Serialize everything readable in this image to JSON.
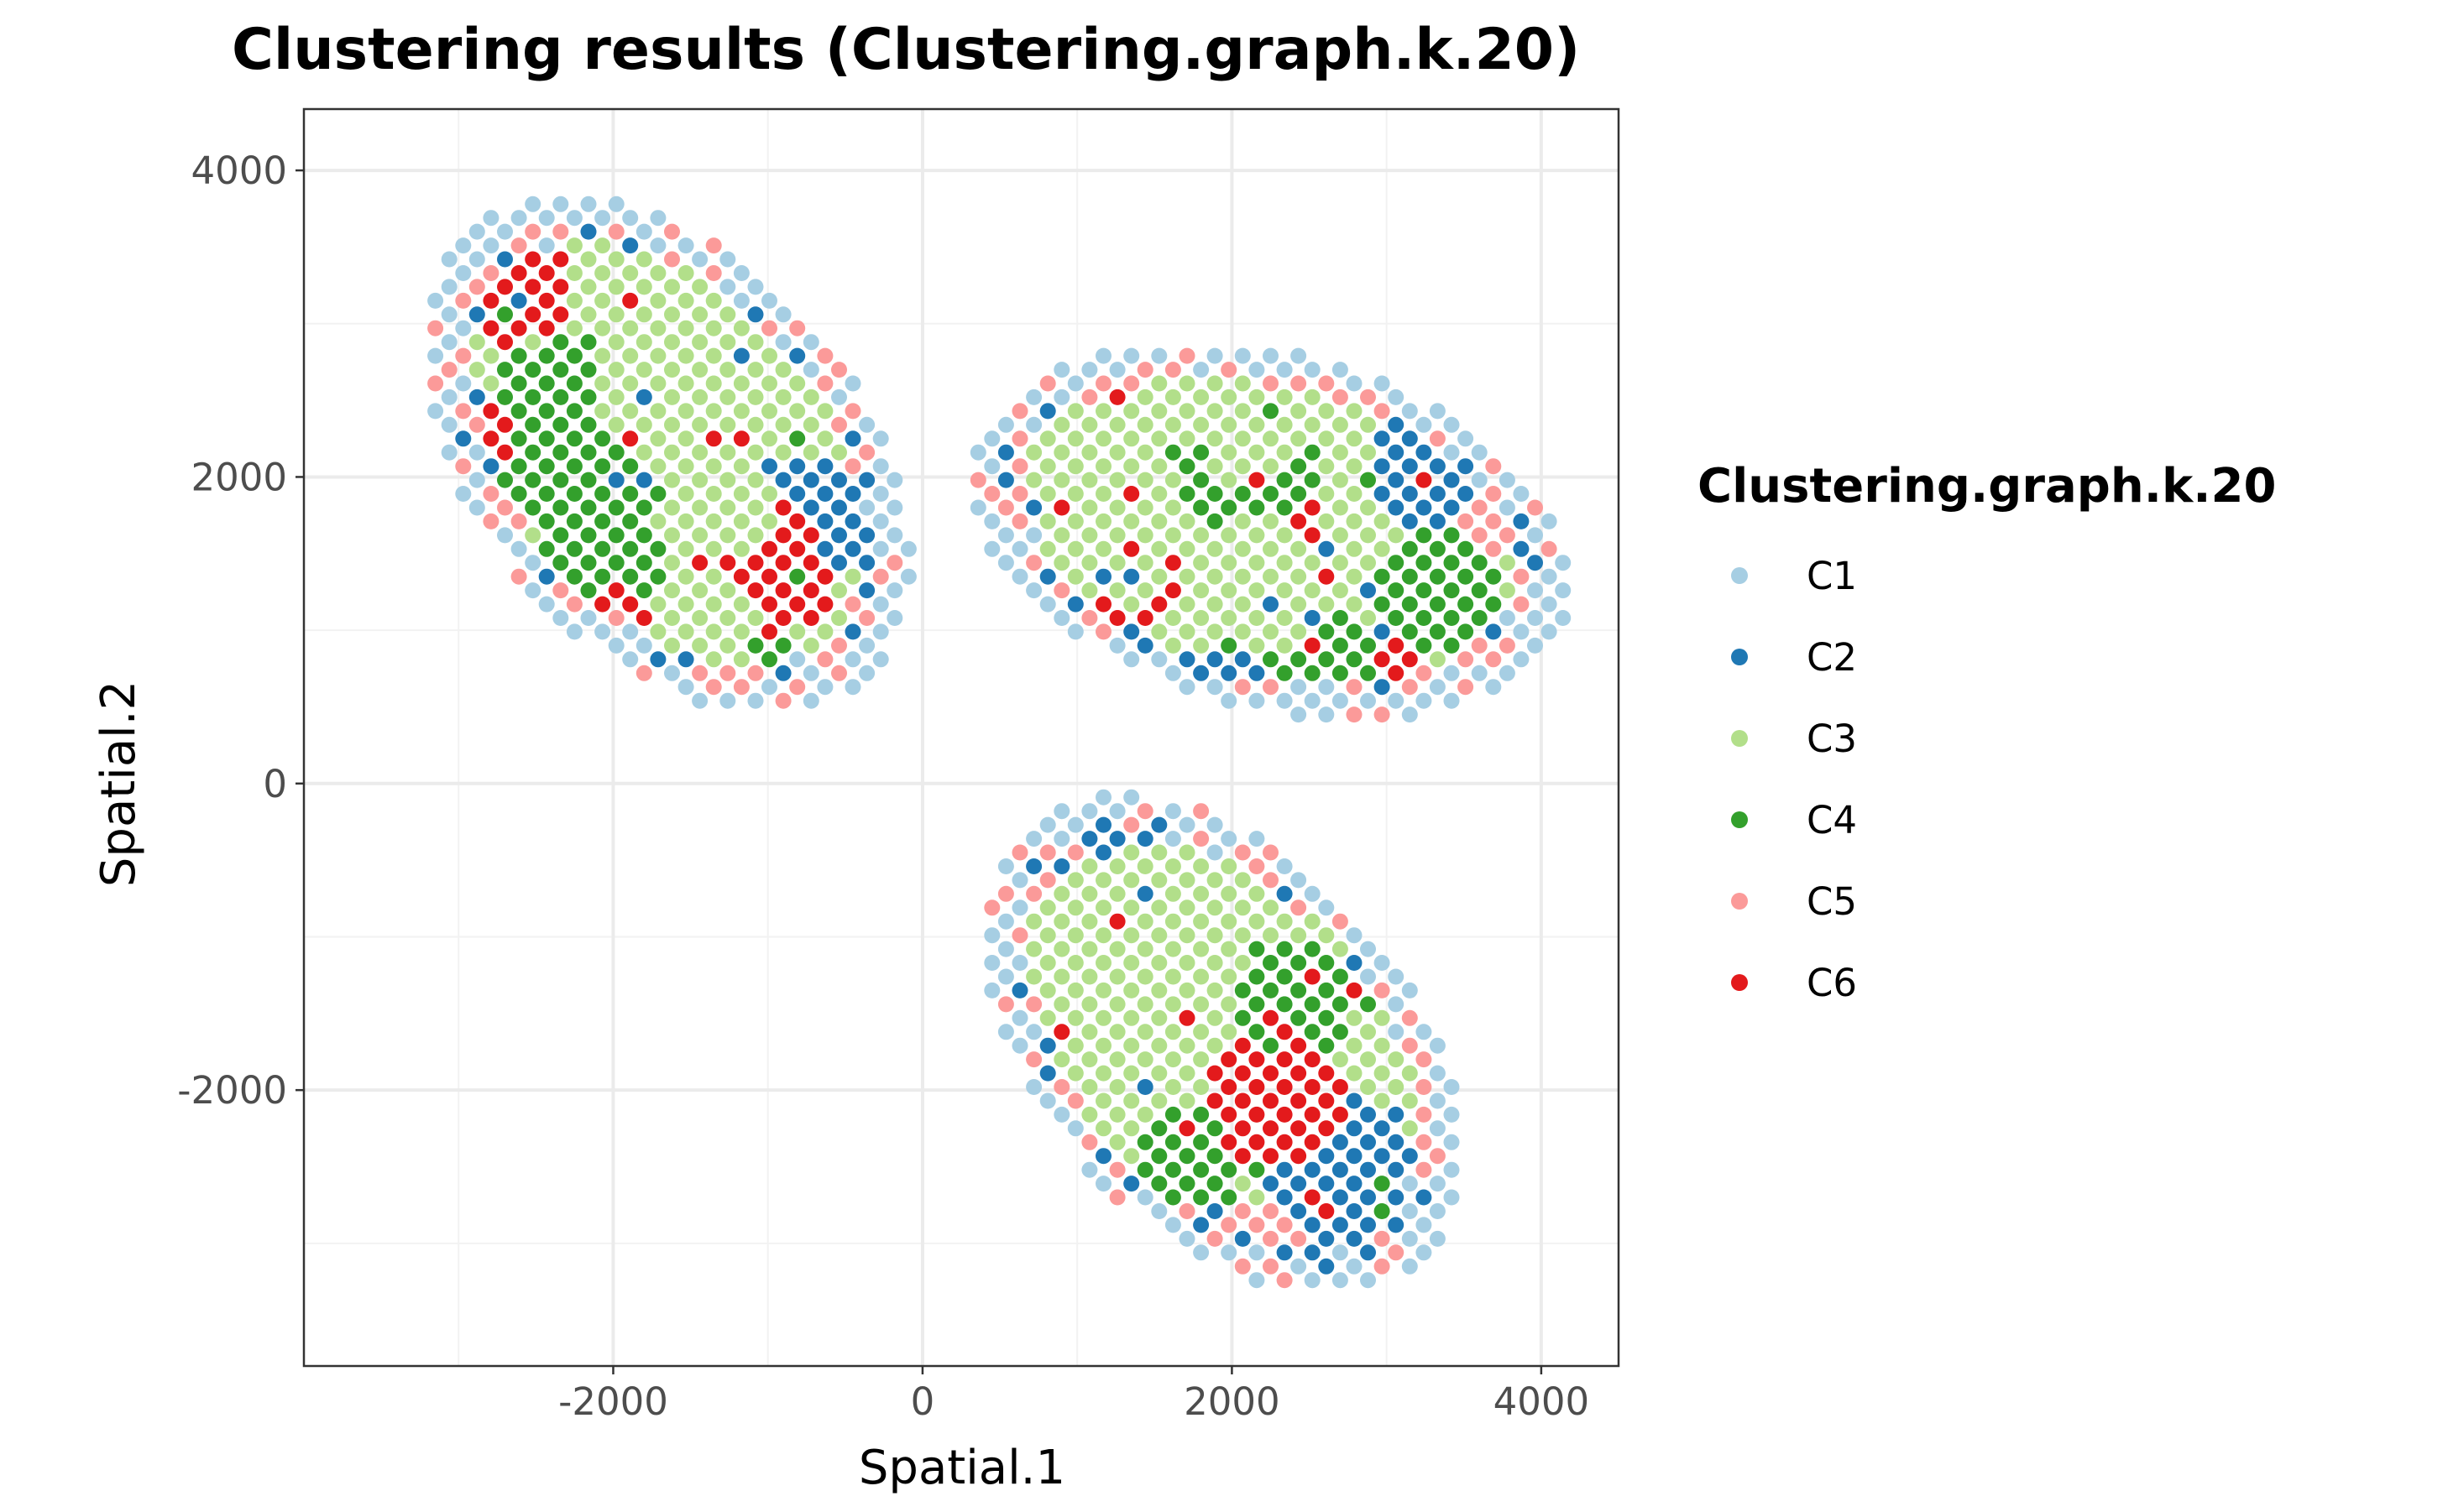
{
  "chart_data": {
    "type": "scatter",
    "title": "Clustering results (Clustering.graph.k.20)",
    "xlabel": "Spatial.1",
    "ylabel": "Spatial.2",
    "xlim": [
      -4000,
      4500
    ],
    "ylim": [
      -3800,
      4400
    ],
    "x_ticks": [
      -2000,
      0,
      2000,
      4000
    ],
    "x_tick_labels": [
      "-2000",
      "0",
      "2000",
      "4000"
    ],
    "y_ticks": [
      -2000,
      0,
      2000,
      4000
    ],
    "y_tick_labels": [
      "-2000",
      "0",
      "2000",
      "4000"
    ],
    "grid": true,
    "legend": {
      "title": "Clustering.graph.k.20",
      "position": "right",
      "entries": [
        {
          "label": "C1",
          "color": "#a6cee3"
        },
        {
          "label": "C2",
          "color": "#1f78b4"
        },
        {
          "label": "C3",
          "color": "#b2df8a"
        },
        {
          "label": "C4",
          "color": "#33a02c"
        },
        {
          "label": "C5",
          "color": "#fb9a99"
        },
        {
          "label": "C6",
          "color": "#e31a1c"
        }
      ]
    },
    "point_spacing": 180,
    "tissue_sections": [
      {
        "name": "upper-left",
        "center": [
          -1650,
          2150
        ],
        "radii": [
          1250,
          1950
        ],
        "rotation_deg": 40,
        "zones": [
          {
            "cluster": "C3",
            "center": [
              -1550,
              2600
            ],
            "radius": 600
          },
          {
            "cluster": "C3",
            "center": [
              -1250,
              1800
            ],
            "radius": 350
          },
          {
            "cluster": "C3",
            "center": [
              -1400,
              1050
            ],
            "radius": 350
          },
          {
            "cluster": "C6",
            "center": [
              -2700,
              3300
            ],
            "radius": 450
          },
          {
            "cluster": "C6",
            "center": [
              -3050,
              2300
            ],
            "radius": 400
          },
          {
            "cluster": "C6",
            "center": [
              -1000,
              1400
            ],
            "radius": 450
          },
          {
            "cluster": "C6",
            "center": [
              -750,
              500
            ],
            "radius": 350
          },
          {
            "cluster": "C6",
            "center": [
              -2000,
              1000
            ],
            "radius": 300
          },
          {
            "cluster": "C4",
            "center": [
              -2200,
              2300
            ],
            "radius": 650
          },
          {
            "cluster": "C4",
            "center": [
              -2100,
              1300
            ],
            "radius": 500
          },
          {
            "cluster": "C4",
            "center": [
              -1000,
              600
            ],
            "radius": 350
          },
          {
            "cluster": "C2",
            "center": [
              -1600,
              450
            ],
            "radius": 500
          },
          {
            "cluster": "C2",
            "center": [
              -700,
              1700
            ],
            "radius": 400
          },
          {
            "cluster": "C2",
            "center": [
              -2900,
              1600
            ],
            "radius": 300
          }
        ]
      },
      {
        "name": "upper-right",
        "center": [
          2250,
          1650
        ],
        "radii": [
          2000,
          1150
        ],
        "rotation_deg": -15,
        "zones": [
          {
            "cluster": "C3",
            "center": [
              900,
              1800
            ],
            "radius": 800
          },
          {
            "cluster": "C3",
            "center": [
              2200,
              1300
            ],
            "radius": 450
          },
          {
            "cluster": "C3",
            "center": [
              2100,
              2400
            ],
            "radius": 450
          },
          {
            "cluster": "C4",
            "center": [
              2100,
              2150
            ],
            "radius": 500
          },
          {
            "cluster": "C4",
            "center": [
              3350,
              1250
            ],
            "radius": 400
          },
          {
            "cluster": "C4",
            "center": [
              2550,
              800
            ],
            "radius": 350
          },
          {
            "cluster": "C6",
            "center": [
              2200,
              1750
            ],
            "radius": 400
          },
          {
            "cluster": "C6",
            "center": [
              1400,
              1300
            ],
            "radius": 300
          },
          {
            "cluster": "C6",
            "center": [
              3000,
              650
            ],
            "radius": 300
          },
          {
            "cluster": "C6",
            "center": [
              1300,
              2350
            ],
            "radius": 200
          },
          {
            "cluster": "C2",
            "center": [
              2200,
              450
            ],
            "radius": 550
          },
          {
            "cluster": "C2",
            "center": [
              3200,
              2000
            ],
            "radius": 350
          },
          {
            "cluster": "C5",
            "center": [
              3700,
              1800
            ],
            "radius": 350
          }
        ]
      },
      {
        "name": "lower",
        "center": [
          1950,
          -1700
        ],
        "radii": [
          1900,
          1200
        ],
        "rotation_deg": -48,
        "zones": [
          {
            "cluster": "C3",
            "center": [
              1350,
              -1350
            ],
            "radius": 650
          },
          {
            "cluster": "C3",
            "center": [
              900,
              -700
            ],
            "radius": 350
          },
          {
            "cluster": "C6",
            "center": [
              600,
              -1600
            ],
            "radius": 450
          },
          {
            "cluster": "C6",
            "center": [
              2300,
              -2050
            ],
            "radius": 450
          },
          {
            "cluster": "C6",
            "center": [
              900,
              -500
            ],
            "radius": 300
          },
          {
            "cluster": "C4",
            "center": [
              2400,
              -1400
            ],
            "radius": 400
          },
          {
            "cluster": "C4",
            "center": [
              1750,
              -2450
            ],
            "radius": 350
          },
          {
            "cluster": "C2",
            "center": [
              2700,
              -2500
            ],
            "radius": 500
          },
          {
            "cluster": "C2",
            "center": [
              1700,
              -3000
            ],
            "radius": 300
          },
          {
            "cluster": "C5",
            "center": [
              2300,
              -3100
            ],
            "radius": 400
          }
        ]
      }
    ]
  }
}
